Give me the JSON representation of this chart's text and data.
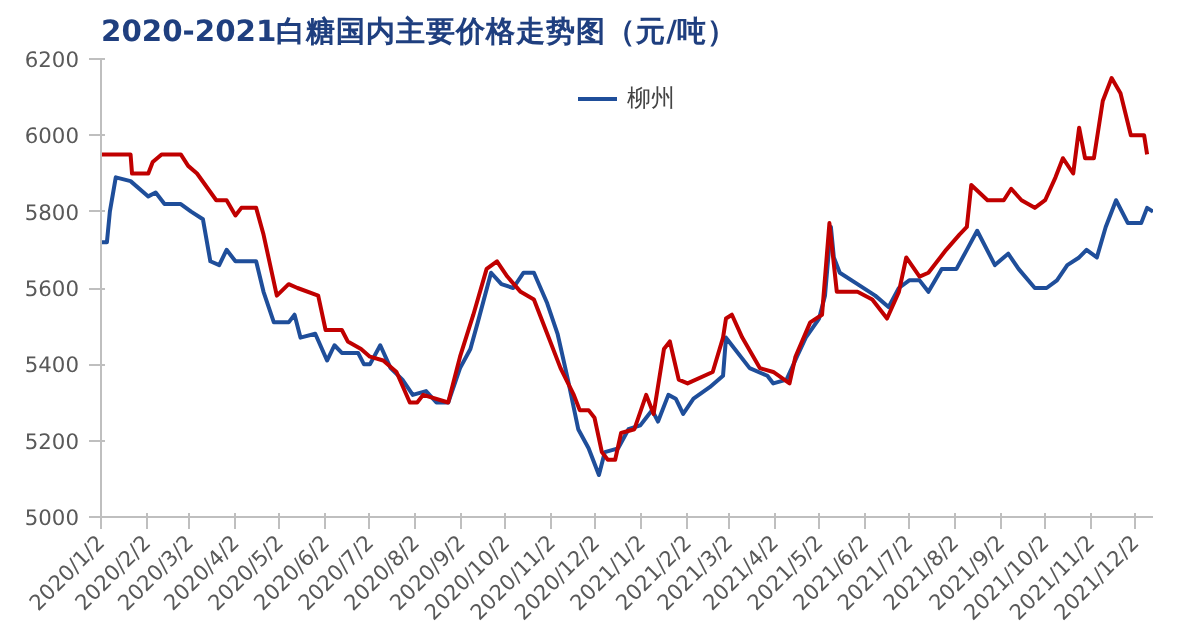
{
  "chart_data": {
    "type": "line",
    "title": "2020-2021白糖国内主要价格走势图（元/吨）",
    "ylim": [
      5000,
      6200
    ],
    "yticks": [
      5000,
      5200,
      5400,
      5600,
      5800,
      6000,
      6200
    ],
    "xlim": [
      "2020-01-02",
      "2021-12-14"
    ],
    "xticks": [
      {
        "value": "2020-01-02",
        "label": "2020/1/2"
      },
      {
        "value": "2020-02-02",
        "label": "2020/2/2"
      },
      {
        "value": "2020-03-02",
        "label": "2020/3/2"
      },
      {
        "value": "2020-04-02",
        "label": "2020/4/2"
      },
      {
        "value": "2020-05-02",
        "label": "2020/5/2"
      },
      {
        "value": "2020-06-02",
        "label": "2020/6/2"
      },
      {
        "value": "2020-07-02",
        "label": "2020/7/2"
      },
      {
        "value": "2020-08-02",
        "label": "2020/8/2"
      },
      {
        "value": "2020-09-02",
        "label": "2020/9/2"
      },
      {
        "value": "2020-10-02",
        "label": "2020/10/2"
      },
      {
        "value": "2020-11-02",
        "label": "2020/11/2"
      },
      {
        "value": "2020-12-02",
        "label": "2020/12/2"
      },
      {
        "value": "2021-01-02",
        "label": "2021/1/2"
      },
      {
        "value": "2021-02-02",
        "label": "2021/2/2"
      },
      {
        "value": "2021-03-02",
        "label": "2021/3/2"
      },
      {
        "value": "2021-04-02",
        "label": "2021/4/2"
      },
      {
        "value": "2021-05-02",
        "label": "2021/5/2"
      },
      {
        "value": "2021-06-02",
        "label": "2021/6/2"
      },
      {
        "value": "2021-07-02",
        "label": "2021/7/2"
      },
      {
        "value": "2021-08-02",
        "label": "2021/8/2"
      },
      {
        "value": "2021-09-02",
        "label": "2021/9/2"
      },
      {
        "value": "2021-10-02",
        "label": "2021/10/2"
      },
      {
        "value": "2021-11-02",
        "label": "2021/11/2"
      },
      {
        "value": "2021-12-02",
        "label": "2021/12/2"
      }
    ],
    "grid": false,
    "legend": "top",
    "marker": "none",
    "line_style": "solid",
    "series": [
      {
        "name": "柳州",
        "color": "#1f4e9a",
        "x": [
          "2020-01-02",
          "2020-01-06",
          "2020-01-08",
          "2020-01-12",
          "2020-01-22",
          "2020-02-03",
          "2020-02-08",
          "2020-02-14",
          "2020-02-25",
          "2020-03-03",
          "2020-03-11",
          "2020-03-16",
          "2020-03-22",
          "2020-03-27",
          "2020-04-02",
          "2020-04-16",
          "2020-04-21",
          "2020-04-28",
          "2020-05-08",
          "2020-05-12",
          "2020-05-16",
          "2020-05-26",
          "2020-06-03",
          "2020-06-08",
          "2020-06-13",
          "2020-06-24",
          "2020-06-28",
          "2020-07-02",
          "2020-07-09",
          "2020-07-16",
          "2020-07-24",
          "2020-07-31",
          "2020-08-09",
          "2020-08-16",
          "2020-08-24",
          "2020-09-01",
          "2020-09-08",
          "2020-09-13",
          "2020-09-22",
          "2020-09-29",
          "2020-10-07",
          "2020-10-14",
          "2020-10-21",
          "2020-10-30",
          "2020-11-06",
          "2020-11-13",
          "2020-11-20",
          "2020-11-27",
          "2020-12-04",
          "2020-12-08",
          "2020-12-17",
          "2020-12-24",
          "2021-01-01",
          "2021-01-05",
          "2021-01-09",
          "2021-01-13",
          "2021-01-20",
          "2021-01-25",
          "2021-01-30",
          "2021-02-06",
          "2021-02-17",
          "2021-02-26",
          "2021-02-28",
          "2021-03-02",
          "2021-03-16",
          "2021-03-28",
          "2021-04-01",
          "2021-04-10",
          "2021-04-17",
          "2021-04-23",
          "2021-05-02",
          "2021-05-06",
          "2021-05-10",
          "2021-05-12",
          "2021-05-16",
          "2021-05-28",
          "2021-06-09",
          "2021-06-18",
          "2021-06-25",
          "2021-07-02",
          "2021-07-09",
          "2021-07-15",
          "2021-07-24",
          "2021-08-03",
          "2021-08-10",
          "2021-08-17",
          "2021-08-29",
          "2021-09-07",
          "2021-09-14",
          "2021-09-25",
          "2021-10-03",
          "2021-10-10",
          "2021-10-17",
          "2021-10-25",
          "2021-10-30",
          "2021-11-06",
          "2021-11-12",
          "2021-11-19",
          "2021-11-27",
          "2021-12-06",
          "2021-12-10",
          "2021-12-14"
        ],
        "values": [
          5720,
          5720,
          5800,
          5890,
          5880,
          5840,
          5850,
          5820,
          5820,
          5800,
          5780,
          5670,
          5660,
          5700,
          5670,
          5670,
          5590,
          5510,
          5510,
          5530,
          5470,
          5480,
          5410,
          5450,
          5430,
          5430,
          5400,
          5400,
          5450,
          5390,
          5360,
          5320,
          5330,
          5300,
          5300,
          5390,
          5440,
          5510,
          5640,
          5610,
          5600,
          5640,
          5640,
          5560,
          5480,
          5360,
          5230,
          5180,
          5110,
          5170,
          5180,
          5230,
          5240,
          5260,
          5280,
          5250,
          5320,
          5310,
          5270,
          5310,
          5340,
          5370,
          5470,
          5460,
          5390,
          5370,
          5350,
          5360,
          5420,
          5470,
          5520,
          5580,
          5760,
          5680,
          5640,
          5610,
          5580,
          5550,
          5600,
          5620,
          5620,
          5590,
          5650,
          5650,
          5700,
          5750,
          5660,
          5690,
          5650,
          5600,
          5600,
          5620,
          5660,
          5680,
          5700,
          5680,
          5760,
          5830,
          5770,
          5770,
          5810,
          5800
        ]
      },
      {
        "color": "#c00000",
        "x": [
          "2020-01-02",
          "2020-01-22",
          "2020-01-23",
          "2020-02-03",
          "2020-02-06",
          "2020-02-12",
          "2020-02-25",
          "2020-03-01",
          "2020-03-07",
          "2020-03-20",
          "2020-03-27",
          "2020-04-02",
          "2020-04-06",
          "2020-04-16",
          "2020-04-21",
          "2020-04-30",
          "2020-05-08",
          "2020-05-14",
          "2020-05-28",
          "2020-06-02",
          "2020-06-13",
          "2020-06-17",
          "2020-06-26",
          "2020-07-02",
          "2020-07-11",
          "2020-07-20",
          "2020-07-29",
          "2020-08-03",
          "2020-08-07",
          "2020-08-24",
          "2020-09-01",
          "2020-09-10",
          "2020-09-19",
          "2020-09-26",
          "2020-10-03",
          "2020-10-12",
          "2020-10-21",
          "2020-10-30",
          "2020-11-08",
          "2020-11-17",
          "2020-11-21",
          "2020-11-27",
          "2020-12-01",
          "2020-12-06",
          "2020-12-10",
          "2020-12-15",
          "2020-12-19",
          "2020-12-28",
          "2021-01-05",
          "2021-01-10",
          "2021-01-17",
          "2021-01-21",
          "2021-01-27",
          "2021-02-02",
          "2021-02-19",
          "2021-02-26",
          "2021-02-28",
          "2021-03-04",
          "2021-03-11",
          "2021-03-23",
          "2021-04-01",
          "2021-04-12",
          "2021-04-16",
          "2021-04-26",
          "2021-05-04",
          "2021-05-09",
          "2021-05-14",
          "2021-05-28",
          "2021-06-07",
          "2021-06-17",
          "2021-06-25",
          "2021-06-30",
          "2021-07-09",
          "2021-07-15",
          "2021-07-27",
          "2021-08-05",
          "2021-08-10",
          "2021-08-13",
          "2021-08-24",
          "2021-09-04",
          "2021-09-09",
          "2021-09-16",
          "2021-09-25",
          "2021-10-02",
          "2021-10-09",
          "2021-10-14",
          "2021-10-21",
          "2021-10-25",
          "2021-10-29",
          "2021-11-04",
          "2021-11-10",
          "2021-11-16",
          "2021-11-22",
          "2021-11-29",
          "2021-12-08",
          "2021-12-10"
        ],
        "values": [
          5950,
          5950,
          5900,
          5900,
          5930,
          5950,
          5950,
          5920,
          5900,
          5830,
          5830,
          5790,
          5810,
          5810,
          5740,
          5580,
          5610,
          5600,
          5580,
          5490,
          5490,
          5460,
          5440,
          5420,
          5410,
          5380,
          5300,
          5300,
          5320,
          5300,
          5420,
          5530,
          5650,
          5670,
          5630,
          5590,
          5570,
          5480,
          5390,
          5320,
          5280,
          5280,
          5260,
          5170,
          5150,
          5150,
          5220,
          5230,
          5320,
          5270,
          5440,
          5460,
          5360,
          5350,
          5380,
          5470,
          5520,
          5530,
          5470,
          5390,
          5380,
          5350,
          5420,
          5510,
          5530,
          5770,
          5590,
          5590,
          5570,
          5520,
          5590,
          5680,
          5630,
          5640,
          5700,
          5740,
          5760,
          5870,
          5830,
          5830,
          5860,
          5830,
          5810,
          5830,
          5890,
          5940,
          5900,
          6020,
          5940,
          5940,
          6090,
          6150,
          6110,
          6000,
          6000,
          5950
        ]
      }
    ]
  }
}
